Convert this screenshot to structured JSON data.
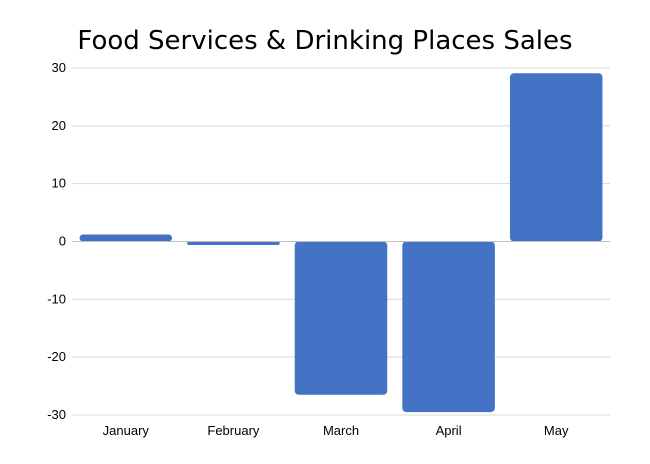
{
  "chart_data": {
    "type": "bar",
    "title": "Food Services & Drinking Places Sales",
    "categories": [
      "January",
      "February",
      "March",
      "April",
      "May"
    ],
    "values": [
      1.2,
      -0.6,
      -26.5,
      -29.5,
      29.1
    ],
    "ylim": [
      -30,
      30
    ],
    "yticks": [
      30,
      20,
      10,
      0,
      -10,
      -20,
      -30
    ],
    "grid": true,
    "bar_color": "#4472C4",
    "grid_color": "#D9D9D9",
    "axis_color": "#BFBFBF"
  }
}
